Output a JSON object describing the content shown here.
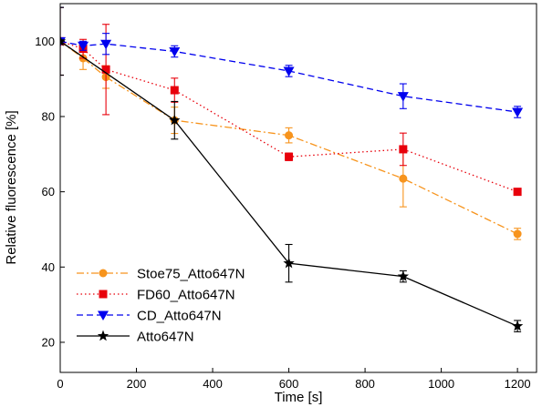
{
  "chart_data": {
    "type": "line",
    "title": "",
    "xlabel": "Time [s]",
    "ylabel": "Relative fluorescence [%]",
    "xlim": [
      0,
      1250
    ],
    "ylim": [
      12,
      110
    ],
    "xticks": [
      0,
      200,
      400,
      600,
      800,
      1000,
      1200
    ],
    "yticks": [
      20,
      40,
      60,
      80,
      100
    ],
    "grid": false,
    "legend_position": "bottom-left",
    "series": [
      {
        "name": "Stoe75_Atto647N",
        "color": "#f7941d",
        "line_style": "dashdot",
        "marker": "circle",
        "x": [
          0,
          60,
          120,
          300,
          600,
          900,
          1200
        ],
        "y": [
          100,
          95.5,
          90.5,
          79,
          75,
          63.5,
          48.8
        ],
        "err": [
          9,
          3,
          3,
          3.5,
          2,
          7.5,
          1.5
        ]
      },
      {
        "name": "FD60_Atto647N",
        "color": "#e8000b",
        "line_style": "dotted",
        "marker": "square",
        "x": [
          0,
          60,
          120,
          300,
          600,
          900,
          1200
        ],
        "y": [
          100,
          98,
          92.5,
          87,
          69.3,
          71.3,
          60
        ],
        "err": [
          9,
          2.5,
          12,
          3.2,
          1,
          4.3,
          0.8
        ]
      },
      {
        "name": "CD_Atto647N",
        "color": "#0000ee",
        "line_style": "dashed",
        "marker": "triangle-down",
        "x": [
          0,
          60,
          120,
          300,
          600,
          900,
          1200
        ],
        "y": [
          100,
          98.8,
          99.3,
          97.3,
          92.1,
          85.4,
          81.2
        ],
        "err": [
          9,
          1.2,
          2.8,
          1.5,
          1.5,
          3.3,
          1.5
        ]
      },
      {
        "name": "Atto647N",
        "color": "#000000",
        "line_style": "solid",
        "marker": "star",
        "x": [
          0,
          300,
          600,
          900,
          1200
        ],
        "y": [
          100,
          79,
          41,
          37.5,
          24.3
        ],
        "err": [
          9,
          5,
          5,
          1.5,
          1.5
        ]
      }
    ]
  }
}
